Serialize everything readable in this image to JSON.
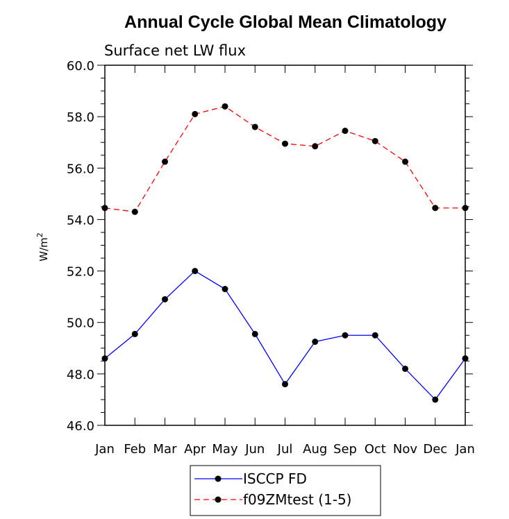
{
  "chart_data": {
    "type": "line",
    "title": "Annual Cycle Global Mean Climatology",
    "subtitle": "Surface net LW flux",
    "ylabel": "W/m",
    "ylabel_sup": "2",
    "categories": [
      "Jan",
      "Feb",
      "Mar",
      "Apr",
      "May",
      "Jun",
      "Jul",
      "Aug",
      "Sep",
      "Oct",
      "Nov",
      "Dec",
      "Jan"
    ],
    "ylim": [
      46.0,
      60.0
    ],
    "yticks": [
      46.0,
      48.0,
      50.0,
      52.0,
      54.0,
      56.0,
      58.0,
      60.0
    ],
    "ytick_labels": [
      "46.0",
      "48.0",
      "50.0",
      "52.0",
      "54.0",
      "56.0",
      "58.0",
      "60.0"
    ],
    "series": [
      {
        "name": "ISCCP FD",
        "color": "#0000ff",
        "style": "solid",
        "values": [
          48.6,
          49.55,
          50.9,
          52.0,
          51.3,
          49.55,
          47.6,
          49.25,
          49.5,
          49.5,
          48.2,
          47.0,
          48.6
        ]
      },
      {
        "name": "f09ZMtest (1-5)",
        "color": "#ff0000",
        "style": "dashed",
        "values": [
          54.45,
          54.3,
          56.25,
          58.1,
          58.4,
          57.6,
          56.95,
          56.85,
          57.45,
          57.05,
          56.25,
          54.45,
          54.45
        ]
      }
    ],
    "grid": false,
    "legend_position": "bottom-center"
  }
}
